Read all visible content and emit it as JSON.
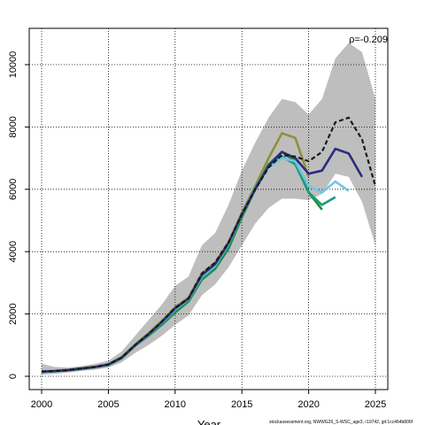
{
  "chart_data": {
    "type": "line",
    "x_label": "Year",
    "annotation": "ρ=-0.209",
    "footer": "stockassessment.org, NWWG26_S-WSC_age3, r19742, git:1cc464b806f",
    "x": [
      2000,
      2001,
      2002,
      2003,
      2004,
      2005,
      2006,
      2007,
      2008,
      2009,
      2010,
      2011,
      2012,
      2013,
      2014,
      2015,
      2016,
      2017,
      2018,
      2019,
      2020,
      2021,
      2022,
      2023,
      2024,
      2025
    ],
    "band": {
      "color": "#bebebe",
      "upper": [
        400,
        300,
        280,
        330,
        400,
        500,
        800,
        1300,
        1800,
        2300,
        2900,
        3200,
        4200,
        4600,
        5500,
        6600,
        7500,
        8300,
        8900,
        8800,
        8400,
        8900,
        10200,
        10700,
        10400,
        8900
      ],
      "lower": [
        50,
        80,
        120,
        170,
        210,
        280,
        450,
        750,
        1000,
        1300,
        1650,
        1950,
        2600,
        2950,
        3500,
        4200,
        4900,
        5400,
        5700,
        5700,
        5650,
        5850,
        6500,
        6400,
        5600,
        4200
      ]
    },
    "series": [
      {
        "color": "#8f8f3a",
        "values": [
          160,
          180,
          210,
          260,
          310,
          390,
          620,
          1020,
          1380,
          1780,
          2220,
          2520,
          3300,
          3650,
          4300,
          5250,
          6100,
          7000,
          7800,
          7650,
          6400,
          null,
          null,
          null,
          null,
          null
        ]
      },
      {
        "color": "#1e8c3a",
        "values": [
          140,
          160,
          190,
          240,
          290,
          360,
          580,
          980,
          1300,
          1650,
          2050,
          2400,
          3100,
          3450,
          4100,
          5100,
          6000,
          6800,
          7200,
          6900,
          5900,
          5350,
          null,
          null,
          null,
          null
        ]
      },
      {
        "color": "#1f9a7a",
        "values": [
          145,
          165,
          195,
          245,
          295,
          370,
          590,
          990,
          1320,
          1680,
          2100,
          2450,
          3150,
          3500,
          4200,
          5150,
          6050,
          6750,
          7050,
          6800,
          5900,
          5500,
          5750,
          null,
          null,
          null
        ]
      },
      {
        "color": "#6ec6e0",
        "values": [
          150,
          170,
          200,
          250,
          300,
          375,
          600,
          1000,
          1340,
          1720,
          2150,
          2470,
          3200,
          3550,
          4250,
          5200,
          6000,
          6700,
          7000,
          6900,
          6100,
          5900,
          6250,
          5950,
          null,
          null
        ]
      },
      {
        "color": "#2b2b7f",
        "values": [
          150,
          170,
          200,
          250,
          300,
          380,
          600,
          1000,
          1350,
          1740,
          2180,
          2490,
          3250,
          3600,
          4280,
          5200,
          6000,
          6750,
          7200,
          7000,
          6500,
          6600,
          7300,
          7150,
          6400,
          null
        ]
      },
      {
        "color": "#1a1a1a",
        "dashed": true,
        "values": [
          150,
          170,
          200,
          250,
          300,
          380,
          600,
          1000,
          1350,
          1750,
          2200,
          2500,
          3300,
          3650,
          4300,
          5200,
          6000,
          6700,
          7100,
          7050,
          6900,
          7200,
          8150,
          8300,
          7600,
          6100
        ]
      }
    ],
    "xlim": [
      1999.07,
      2025.93
    ],
    "xticks": [
      2000,
      2005,
      2010,
      2015,
      2020,
      2025
    ],
    "ylim": [
      -426,
      11165
    ],
    "yticks": [
      0,
      2000,
      4000,
      6000,
      8000,
      10000
    ],
    "grid": true
  }
}
